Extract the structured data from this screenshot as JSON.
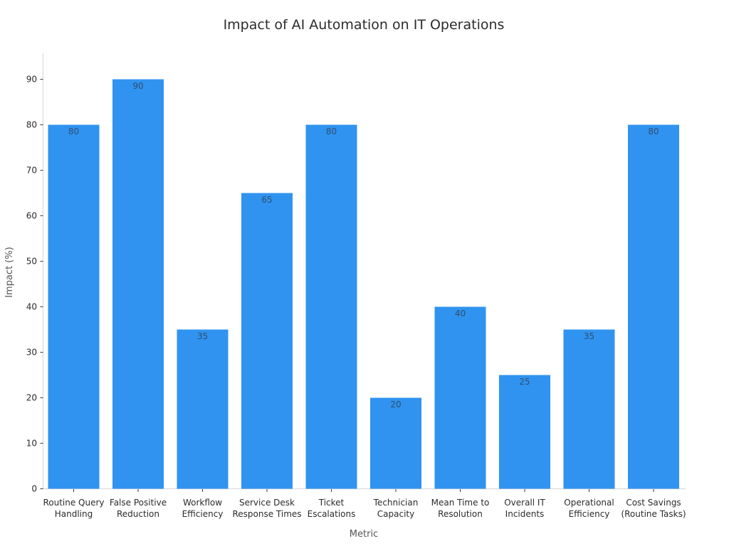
{
  "chart_data": {
    "type": "bar",
    "title": "Impact of AI Automation on IT Operations",
    "xlabel": "Metric",
    "ylabel": "Impact (%)",
    "categories": [
      "Routine Query Handling",
      "False Positive Reduction",
      "Workflow Efficiency",
      "Service Desk Response Times",
      "Ticket Escalations",
      "Technician Capacity",
      "Mean Time to Resolution",
      "Overall IT Incidents",
      "Operational Efficiency",
      "Cost Savings (Routine Tasks)"
    ],
    "category_label_lines": [
      [
        "Routine Query",
        "Handling"
      ],
      [
        "False Positive",
        "Reduction"
      ],
      [
        "Workflow",
        "Efficiency"
      ],
      [
        "Service Desk",
        "Response Times"
      ],
      [
        "Ticket",
        "Escalations"
      ],
      [
        "Technician",
        "Capacity"
      ],
      [
        "Mean Time to",
        "Resolution"
      ],
      [
        "Overall IT",
        "Incidents"
      ],
      [
        "Operational",
        "Efficiency"
      ],
      [
        "Cost Savings",
        "(Routine Tasks)"
      ]
    ],
    "values": [
      80,
      90,
      35,
      65,
      80,
      20,
      40,
      25,
      35,
      80
    ],
    "bar_labels": [
      "80",
      "90",
      "35",
      "65",
      "80",
      "20",
      "40",
      "25",
      "35",
      "80"
    ],
    "y_ticks": [
      0,
      10,
      20,
      30,
      40,
      50,
      60,
      70,
      80,
      90
    ],
    "ylim": [
      0,
      94.5
    ],
    "grid": false,
    "legend": null,
    "colors": {
      "bar": "#3093f0",
      "bar_label": "#2f4f6e",
      "spine": "#d9d9d9",
      "tick_mark": "#3a3a3a",
      "tick_label": "#2b2b2b",
      "axis_label": "#555555",
      "title": "#2b2b2b",
      "background": "#ffffff"
    }
  }
}
